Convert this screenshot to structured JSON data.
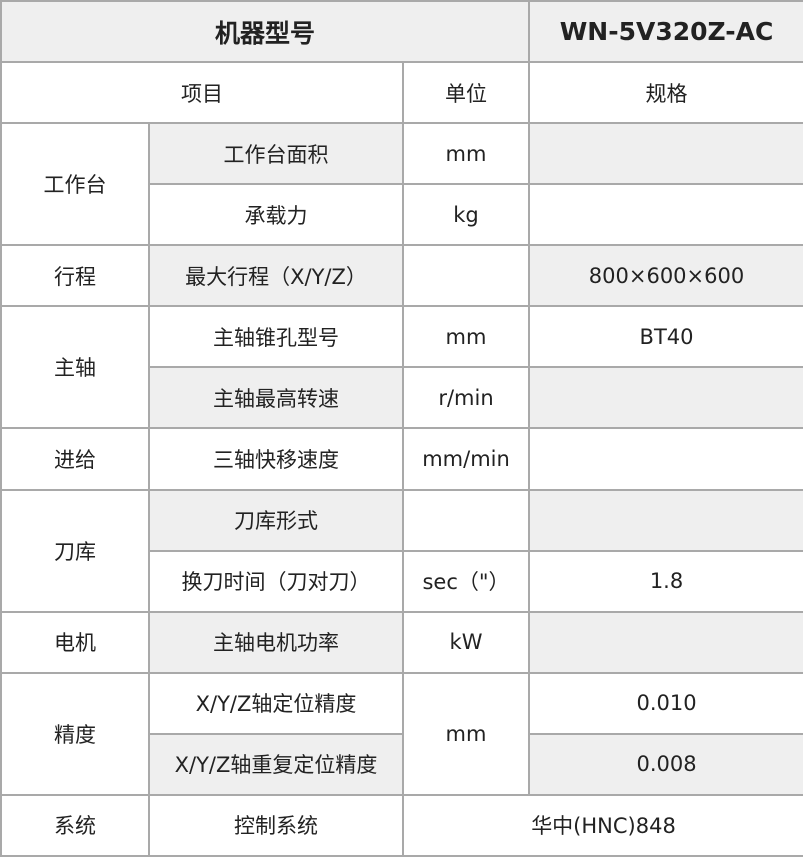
{
  "header": {
    "model_label": "机器型号",
    "model_value": "WN-5V320Z-AC"
  },
  "columns": {
    "item": "项目",
    "unit": "单位",
    "spec": "规格"
  },
  "colors": {
    "shade": "#efefef",
    "border": "#a9a9a9"
  },
  "groups": [
    {
      "category": "工作台",
      "rows": [
        {
          "item": "工作台面积",
          "unit": "mm",
          "spec": ""
        },
        {
          "item": "承载力",
          "unit": "kg",
          "spec": ""
        }
      ]
    },
    {
      "category": "行程",
      "rows": [
        {
          "item": "最大行程（X/Y/Z）",
          "unit": "",
          "spec": "800×600×600"
        }
      ]
    },
    {
      "category": "主轴",
      "rows": [
        {
          "item": "主轴锥孔型号",
          "unit": "mm",
          "spec": "BT40"
        },
        {
          "item": "主轴最高转速",
          "unit": "r/min",
          "spec": ""
        }
      ]
    },
    {
      "category": "进给",
      "rows": [
        {
          "item": "三轴快移速度",
          "unit": "mm/min",
          "spec": ""
        }
      ]
    },
    {
      "category": "刀库",
      "rows": [
        {
          "item": "刀库形式",
          "unit": "",
          "spec": ""
        },
        {
          "item": "换刀时间（刀对刀）",
          "unit": "sec（\"）",
          "spec": "1.8"
        }
      ]
    },
    {
      "category": "电机",
      "rows": [
        {
          "item": "主轴电机功率",
          "unit": "kW",
          "spec": ""
        }
      ]
    },
    {
      "category": "精度",
      "unit": "mm",
      "rows": [
        {
          "item": "X/Y/Z轴定位精度",
          "spec": "0.010"
        },
        {
          "item": "X/Y/Z轴重复定位精度",
          "spec": "0.008"
        }
      ]
    },
    {
      "category": "系统",
      "rows": [
        {
          "item": "控制系统",
          "spec": "华中(HNC)848"
        }
      ]
    }
  ]
}
